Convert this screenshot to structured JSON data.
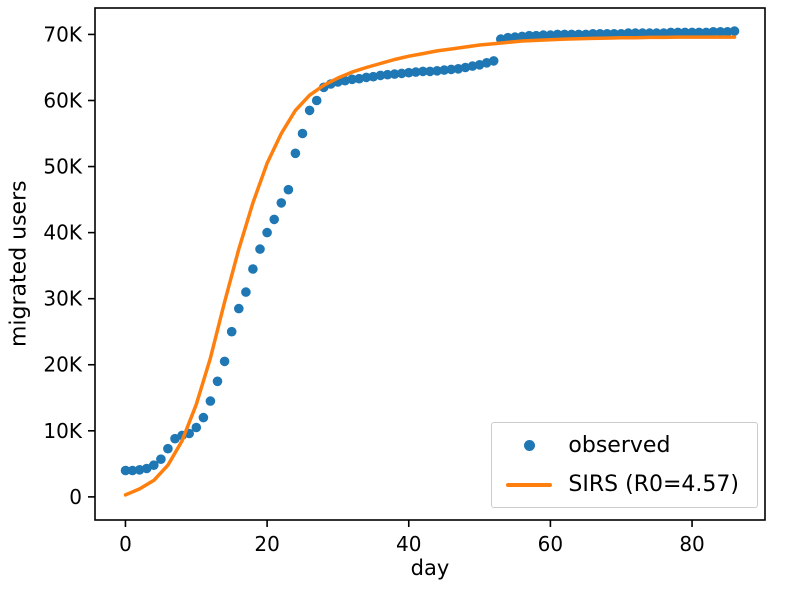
{
  "figure": {
    "background": "#ffffff",
    "xlabel": "day",
    "ylabel": "migrated users",
    "colors": {
      "observed": "#1f77b4",
      "sirs": "#ff7f0e",
      "spine": "#000000",
      "legend_border": "#cccccc"
    },
    "legend": {
      "position": "lower right",
      "entries": [
        {
          "label": "observed",
          "marker": "dot",
          "color": "#1f77b4"
        },
        {
          "label": "SIRS (R0=4.57)",
          "marker": "line",
          "color": "#ff7f0e"
        }
      ]
    }
  },
  "chart_data": {
    "type": "scatter",
    "title": "",
    "xlabel": "day",
    "ylabel": "migrated users",
    "xlim": [
      -4.3,
      90.3
    ],
    "ylim": [
      -3500,
      74000
    ],
    "grid": false,
    "legend_position": "lower right",
    "x_ticks": [
      0,
      20,
      40,
      60,
      80
    ],
    "x_tick_labels": [
      "0",
      "20",
      "40",
      "60",
      "80"
    ],
    "y_ticks": [
      0,
      10000,
      20000,
      30000,
      40000,
      50000,
      60000,
      70000
    ],
    "y_tick_labels": [
      "0",
      "10K",
      "20K",
      "30K",
      "40K",
      "50K",
      "60K",
      "70K"
    ],
    "series": [
      {
        "name": "observed",
        "type": "scatter",
        "color": "#1f77b4",
        "marker_radius": 4.8,
        "x": [
          0,
          1,
          2,
          3,
          4,
          5,
          6,
          7,
          8,
          9,
          10,
          11,
          12,
          13,
          14,
          15,
          16,
          17,
          18,
          19,
          20,
          21,
          22,
          23,
          24,
          25,
          26,
          27,
          28,
          29,
          30,
          31,
          32,
          33,
          34,
          35,
          36,
          37,
          38,
          39,
          40,
          41,
          42,
          43,
          44,
          45,
          46,
          47,
          48,
          49,
          50,
          51,
          52,
          53,
          54,
          55,
          56,
          57,
          58,
          59,
          60,
          61,
          62,
          63,
          64,
          65,
          66,
          67,
          68,
          69,
          70,
          71,
          72,
          73,
          74,
          75,
          76,
          77,
          78,
          79,
          80,
          81,
          82,
          83,
          84,
          85,
          86
        ],
        "y": [
          4000,
          4000,
          4100,
          4300,
          4800,
          5700,
          7300,
          8800,
          9300,
          9600,
          10500,
          12000,
          14500,
          17500,
          20500,
          25000,
          28500,
          31000,
          34500,
          37500,
          40000,
          42000,
          44500,
          46500,
          52000,
          55000,
          58500,
          60000,
          62000,
          62500,
          62800,
          63000,
          63200,
          63300,
          63500,
          63600,
          63800,
          63900,
          64000,
          64100,
          64200,
          64300,
          64400,
          64400,
          64500,
          64600,
          64700,
          64800,
          65000,
          65200,
          65400,
          65700,
          66000,
          69300,
          69500,
          69600,
          69700,
          69800,
          69800,
          69900,
          69900,
          70000,
          70000,
          70000,
          70000,
          70000,
          70100,
          70100,
          70100,
          70100,
          70100,
          70200,
          70200,
          70200,
          70200,
          70200,
          70200,
          70300,
          70300,
          70300,
          70300,
          70300,
          70300,
          70400,
          70400,
          70400,
          70500
        ]
      },
      {
        "name": "SIRS (R0=4.57)",
        "type": "line",
        "color": "#ff7f0e",
        "line_width": 3.5,
        "x": [
          0,
          2,
          4,
          6,
          8,
          10,
          12,
          14,
          16,
          18,
          20,
          22,
          24,
          26,
          28,
          30,
          32,
          34,
          36,
          38,
          40,
          42,
          44,
          46,
          48,
          50,
          52,
          54,
          56,
          58,
          60,
          62,
          64,
          66,
          68,
          70,
          72,
          74,
          76,
          78,
          80,
          82,
          84,
          86
        ],
        "y": [
          300,
          1200,
          2500,
          4800,
          8500,
          14000,
          21000,
          29500,
          37500,
          44500,
          50500,
          55000,
          58500,
          60800,
          62300,
          63400,
          64300,
          65000,
          65600,
          66200,
          66700,
          67100,
          67500,
          67800,
          68100,
          68400,
          68600,
          68800,
          69000,
          69100,
          69200,
          69300,
          69350,
          69400,
          69450,
          69500,
          69500,
          69550,
          69550,
          69600,
          69600,
          69600,
          69600,
          69600
        ]
      }
    ]
  }
}
